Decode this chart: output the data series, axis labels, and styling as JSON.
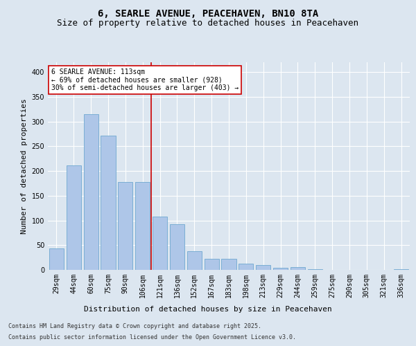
{
  "title": "6, SEARLE AVENUE, PEACEHAVEN, BN10 8TA",
  "subtitle": "Size of property relative to detached houses in Peacehaven",
  "xlabel": "Distribution of detached houses by size in Peacehaven",
  "ylabel": "Number of detached properties",
  "categories": [
    "29sqm",
    "44sqm",
    "60sqm",
    "75sqm",
    "90sqm",
    "106sqm",
    "121sqm",
    "136sqm",
    "152sqm",
    "167sqm",
    "183sqm",
    "198sqm",
    "213sqm",
    "229sqm",
    "244sqm",
    "259sqm",
    "275sqm",
    "290sqm",
    "305sqm",
    "321sqm",
    "336sqm"
  ],
  "values": [
    43,
    211,
    315,
    272,
    178,
    178,
    108,
    92,
    38,
    22,
    22,
    13,
    10,
    4,
    5,
    1,
    0,
    0,
    0,
    0,
    2
  ],
  "bar_color": "#aec6e8",
  "bar_edge_color": "#6fa8d0",
  "vline_x": 5.5,
  "vline_color": "#cc0000",
  "annotation_text": "6 SEARLE AVENUE: 113sqm\n← 69% of detached houses are smaller (928)\n30% of semi-detached houses are larger (403) →",
  "annotation_box_color": "#ffffff",
  "annotation_box_edge": "#cc0000",
  "background_color": "#dce6f0",
  "plot_bg_color": "#dce6f0",
  "footer_line1": "Contains HM Land Registry data © Crown copyright and database right 2025.",
  "footer_line2": "Contains public sector information licensed under the Open Government Licence v3.0.",
  "ylim": [
    0,
    420
  ],
  "title_fontsize": 10,
  "subtitle_fontsize": 9,
  "xlabel_fontsize": 8,
  "ylabel_fontsize": 8,
  "tick_fontsize": 7,
  "annotation_fontsize": 7,
  "footer_fontsize": 6
}
